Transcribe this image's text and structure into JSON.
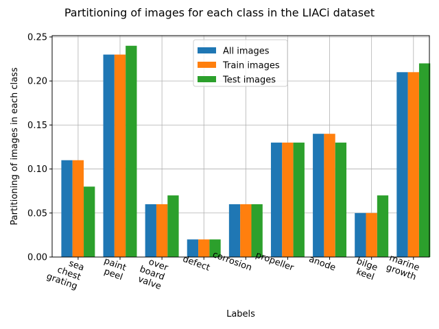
{
  "chart_data": {
    "type": "bar",
    "title": "Partitioning of images for each class in the LIACi dataset",
    "xlabel": "Labels",
    "ylabel": "Partitioning of images in each class",
    "categories": [
      [
        "sea",
        "chest",
        "grating"
      ],
      [
        "paint",
        "peel"
      ],
      [
        "over",
        "board",
        "valve"
      ],
      [
        "defect"
      ],
      [
        "corrosion"
      ],
      [
        "propeller"
      ],
      [
        "anode"
      ],
      [
        "bilge",
        "keel"
      ],
      [
        "marine",
        "growth"
      ]
    ],
    "series": [
      {
        "name": "All images",
        "color": "#1f77b4",
        "values": [
          0.11,
          0.23,
          0.06,
          0.02,
          0.06,
          0.13,
          0.14,
          0.05,
          0.21
        ]
      },
      {
        "name": "Train images",
        "color": "#ff7f0e",
        "values": [
          0.11,
          0.23,
          0.06,
          0.02,
          0.06,
          0.13,
          0.14,
          0.05,
          0.21
        ]
      },
      {
        "name": "Test images",
        "color": "#2ca02c",
        "values": [
          0.08,
          0.24,
          0.07,
          0.02,
          0.06,
          0.13,
          0.13,
          0.07,
          0.22
        ]
      }
    ],
    "ylim": [
      0,
      0.2515
    ],
    "yticks": [
      "0.00",
      "0.05",
      "0.10",
      "0.15",
      "0.20",
      "0.25"
    ],
    "grid": true,
    "legend_position": "top-center",
    "xtick_rotation_deg": 20
  }
}
